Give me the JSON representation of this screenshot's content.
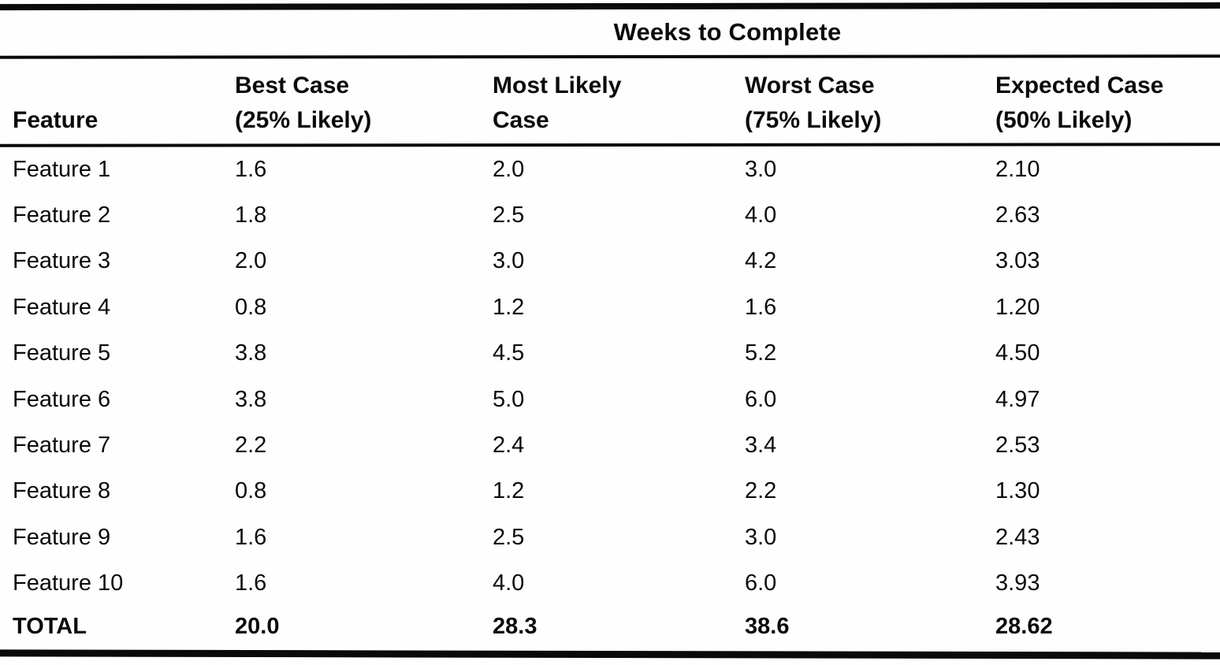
{
  "table": {
    "group_header": "Weeks to Complete",
    "columns": [
      {
        "line1": "Feature",
        "line2": ""
      },
      {
        "line1": "Best Case",
        "line2": "(25% Likely)"
      },
      {
        "line1": "Most Likely",
        "line2": "Case"
      },
      {
        "line1": "Worst Case",
        "line2": "(75% Likely)"
      },
      {
        "line1": "Expected Case",
        "line2": "(50% Likely)"
      }
    ],
    "rows": [
      {
        "feature": "Feature 1",
        "best": "1.6",
        "most_likely": "2.0",
        "worst": "3.0",
        "expected": "2.10"
      },
      {
        "feature": "Feature 2",
        "best": "1.8",
        "most_likely": "2.5",
        "worst": "4.0",
        "expected": "2.63"
      },
      {
        "feature": "Feature 3",
        "best": "2.0",
        "most_likely": "3.0",
        "worst": "4.2",
        "expected": "3.03"
      },
      {
        "feature": "Feature 4",
        "best": "0.8",
        "most_likely": "1.2",
        "worst": "1.6",
        "expected": "1.20"
      },
      {
        "feature": "Feature 5",
        "best": "3.8",
        "most_likely": "4.5",
        "worst": "5.2",
        "expected": "4.50"
      },
      {
        "feature": "Feature 6",
        "best": "3.8",
        "most_likely": "5.0",
        "worst": "6.0",
        "expected": "4.97"
      },
      {
        "feature": "Feature 7",
        "best": "2.2",
        "most_likely": "2.4",
        "worst": "3.4",
        "expected": "2.53"
      },
      {
        "feature": "Feature 8",
        "best": "0.8",
        "most_likely": "1.2",
        "worst": "2.2",
        "expected": "1.30"
      },
      {
        "feature": "Feature 9",
        "best": "1.6",
        "most_likely": "2.5",
        "worst": "3.0",
        "expected": "2.43"
      },
      {
        "feature": "Feature 10",
        "best": "1.6",
        "most_likely": "4.0",
        "worst": "6.0",
        "expected": "3.93"
      }
    ],
    "total": {
      "feature": "TOTAL",
      "best": "20.0",
      "most_likely": "28.3",
      "worst": "38.6",
      "expected": "28.62"
    }
  }
}
